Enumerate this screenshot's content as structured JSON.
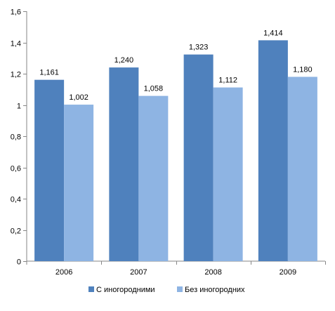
{
  "chart_data": {
    "type": "bar",
    "title": "",
    "xlabel": "",
    "ylabel": "",
    "categories": [
      "2006",
      "2007",
      "2008",
      "2009"
    ],
    "series": [
      {
        "name": "С иногородними",
        "values": [
          1.161,
          1.24,
          1.323,
          1.414
        ],
        "labels": [
          "1,161",
          "1,240",
          "1,323",
          "1,414"
        ],
        "color": "#4F81BD"
      },
      {
        "name": "Без иногородних",
        "values": [
          1.002,
          1.058,
          1.112,
          1.18
        ],
        "labels": [
          "1,002",
          "1,058",
          "1,112",
          "1,180"
        ],
        "color": "#8EB4E3"
      }
    ],
    "ylim": [
      0,
      1.6
    ],
    "yticks": [
      0,
      0.2,
      0.4,
      0.6,
      0.8,
      1,
      1.2,
      1.4,
      1.6
    ],
    "ytick_labels": [
      "0",
      "0,2",
      "0,4",
      "0,6",
      "0,8",
      "1",
      "1,2",
      "1,4",
      "1,6"
    ],
    "grid": false,
    "legend_position": "bottom"
  }
}
